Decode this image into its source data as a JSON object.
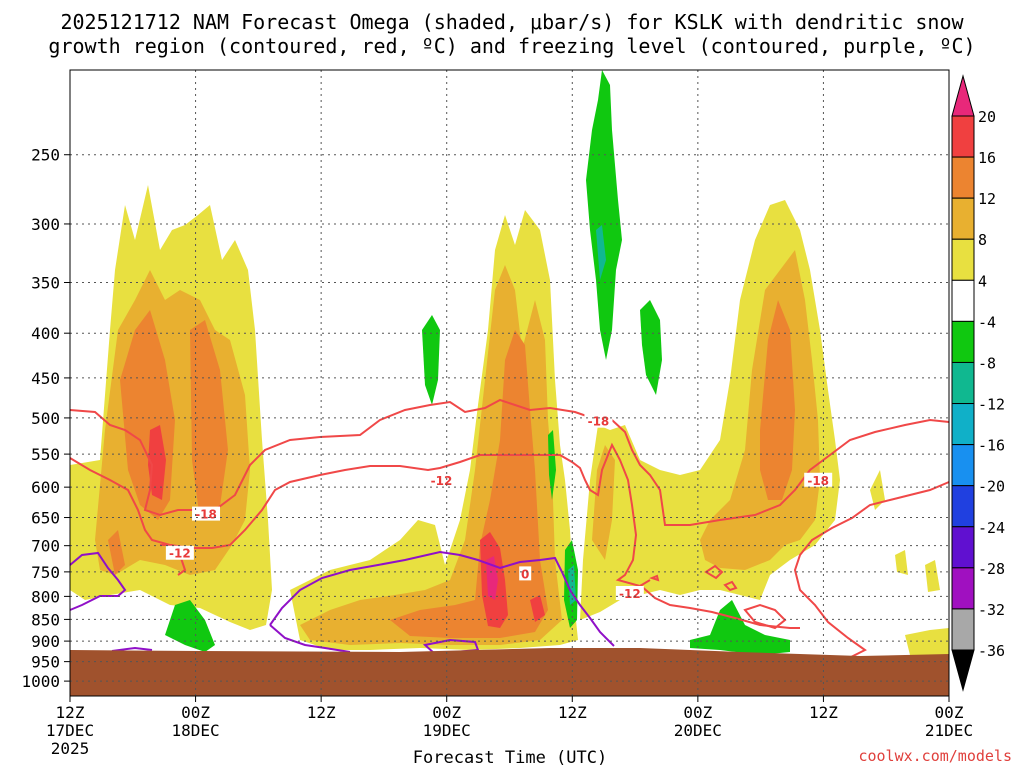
{
  "chart_data": {
    "type": "heatmap",
    "title_line1": "2025121712 NAM Forecast Omega (shaded, μbar/s) for KSLK with dendritic snow",
    "title_line2": "growth region (contoured, red, ºC) and freezing level (contoured, purple, ºC)",
    "xlabel": "Forecast Time (UTC)",
    "credit": "coolwx.com/models",
    "y_ticks": [
      250,
      300,
      350,
      400,
      450,
      500,
      550,
      600,
      650,
      700,
      750,
      800,
      850,
      900,
      950,
      1000
    ],
    "y_range_hpa": [
      200,
      1040
    ],
    "x_ticks": [
      {
        "hours": 0,
        "line1": "12Z",
        "line2": "17DEC",
        "line3": "2025"
      },
      {
        "hours": 12,
        "line1": "00Z",
        "line2": "18DEC",
        "line3": ""
      },
      {
        "hours": 24,
        "line1": "12Z",
        "line2": "",
        "line3": ""
      },
      {
        "hours": 36,
        "line1": "00Z",
        "line2": "19DEC",
        "line3": ""
      },
      {
        "hours": 48,
        "line1": "12Z",
        "line2": "",
        "line3": ""
      },
      {
        "hours": 60,
        "line1": "00Z",
        "line2": "20DEC",
        "line3": ""
      },
      {
        "hours": 72,
        "line1": "12Z",
        "line2": "",
        "line3": ""
      },
      {
        "hours": 84,
        "line1": "00Z",
        "line2": "21DEC",
        "line3": ""
      }
    ],
    "x_range_hours": [
      0,
      84
    ],
    "colorbar": {
      "levels": [
        20,
        16,
        12,
        8,
        4,
        -4,
        -8,
        -12,
        -16,
        -20,
        -24,
        -28,
        -32,
        -36
      ],
      "colors": [
        "#e8287a",
        "#f04040",
        "#ec8430",
        "#e8b030",
        "#e8e040",
        "#ffffff",
        "#10c810",
        "#10b890",
        "#10b0c8",
        "#1890f0",
        "#2040e0",
        "#6010d0",
        "#a010c0",
        "#a8a8a8",
        "#000000"
      ]
    },
    "contour_labels": [
      {
        "text": "-18",
        "hours": 50.5,
        "hpa": 505
      },
      {
        "text": "-12",
        "hours": 35.5,
        "hpa": 590
      },
      {
        "text": "-18",
        "hours": 13,
        "hpa": 645
      },
      {
        "text": "-12",
        "hours": 10.5,
        "hpa": 715
      },
      {
        "text": "-18",
        "hours": 71.5,
        "hpa": 590
      },
      {
        "text": "-12",
        "hours": 53.5,
        "hpa": 795
      },
      {
        "text": "0",
        "hours": 43.5,
        "hpa": 755
      }
    ],
    "ground_level_hpa": 940
  }
}
